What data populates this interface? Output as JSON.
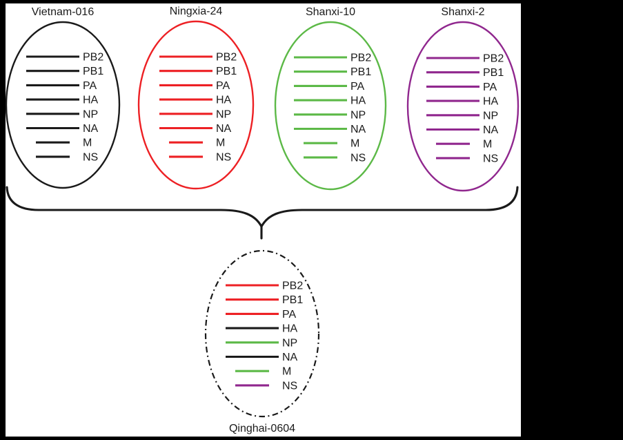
{
  "figure": {
    "background": "#000000",
    "canvas_color": "#ffffff"
  },
  "colors": {
    "black": "#1a1a1a",
    "red": "#ed2024",
    "green": "#5cb947",
    "purple": "#90278e"
  },
  "brace": {
    "color": "#1a1a1a"
  },
  "viruses": [
    {
      "name": "Vietnam-016",
      "outline": "black",
      "outline_style": "solid",
      "name_position": "top",
      "segments": [
        {
          "label": "PB2",
          "color": "black"
        },
        {
          "label": "PB1",
          "color": "black"
        },
        {
          "label": "PA",
          "color": "black"
        },
        {
          "label": "HA",
          "color": "black"
        },
        {
          "label": "NP",
          "color": "black"
        },
        {
          "label": "NA",
          "color": "black"
        },
        {
          "label": "M",
          "color": "black"
        },
        {
          "label": "NS",
          "color": "black"
        }
      ]
    },
    {
      "name": "Ningxia-24",
      "outline": "red",
      "outline_style": "solid",
      "name_position": "top",
      "segments": [
        {
          "label": "PB2",
          "color": "red"
        },
        {
          "label": "PB1",
          "color": "red"
        },
        {
          "label": "PA",
          "color": "red"
        },
        {
          "label": "HA",
          "color": "red"
        },
        {
          "label": "NP",
          "color": "red"
        },
        {
          "label": "NA",
          "color": "red"
        },
        {
          "label": "M",
          "color": "red"
        },
        {
          "label": "NS",
          "color": "red"
        }
      ]
    },
    {
      "name": "Shanxi-10",
      "outline": "green",
      "outline_style": "solid",
      "name_position": "top",
      "segments": [
        {
          "label": "PB2",
          "color": "green"
        },
        {
          "label": "PB1",
          "color": "green"
        },
        {
          "label": "PA",
          "color": "green"
        },
        {
          "label": "HA",
          "color": "green"
        },
        {
          "label": "NP",
          "color": "green"
        },
        {
          "label": "NA",
          "color": "green"
        },
        {
          "label": "M",
          "color": "green"
        },
        {
          "label": "NS",
          "color": "green"
        }
      ]
    },
    {
      "name": "Shanxi-2",
      "outline": "purple",
      "outline_style": "solid",
      "name_position": "top",
      "segments": [
        {
          "label": "PB2",
          "color": "purple"
        },
        {
          "label": "PB1",
          "color": "purple"
        },
        {
          "label": "PA",
          "color": "purple"
        },
        {
          "label": "HA",
          "color": "purple"
        },
        {
          "label": "NP",
          "color": "purple"
        },
        {
          "label": "NA",
          "color": "purple"
        },
        {
          "label": "M",
          "color": "purple"
        },
        {
          "label": "NS",
          "color": "purple"
        }
      ]
    },
    {
      "name": "Qinghai-0604",
      "outline": "black",
      "outline_style": "dash-dot",
      "name_position": "bottom",
      "segments": [
        {
          "label": "PB2",
          "color": "red"
        },
        {
          "label": "PB1",
          "color": "red"
        },
        {
          "label": "PA",
          "color": "red"
        },
        {
          "label": "HA",
          "color": "black"
        },
        {
          "label": "NP",
          "color": "green"
        },
        {
          "label": "NA",
          "color": "black"
        },
        {
          "label": "M",
          "color": "green"
        },
        {
          "label": "NS",
          "color": "purple"
        }
      ]
    }
  ]
}
